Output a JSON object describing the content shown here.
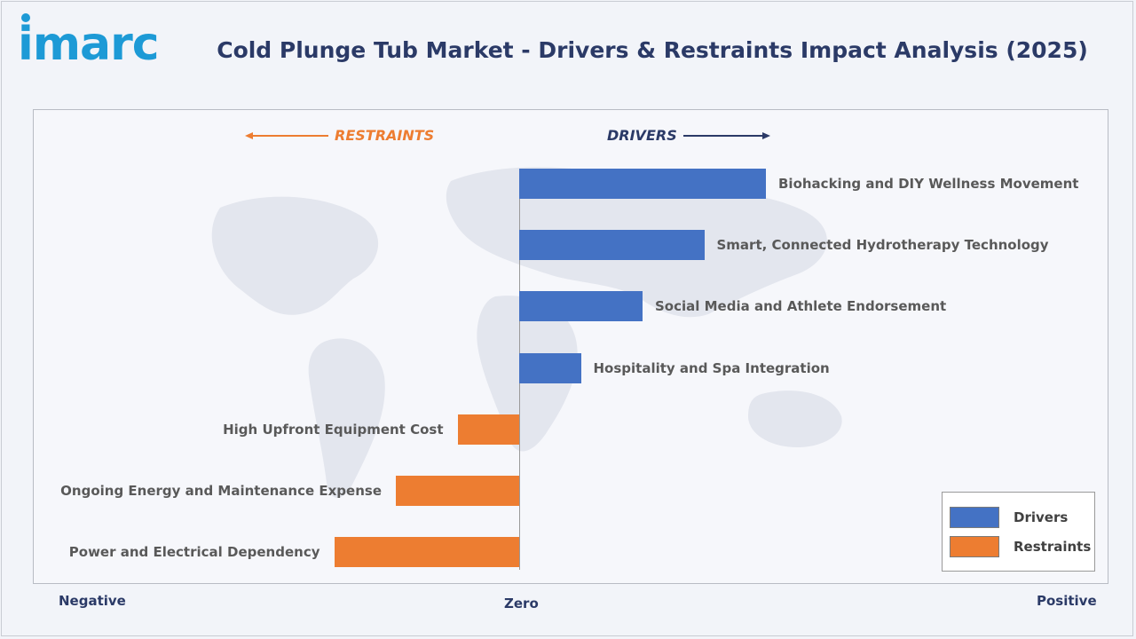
{
  "header": {
    "logo_text": "imarc",
    "title": "Cold Plunge Tub Market - Drivers & Restraints Impact Analysis (2025)"
  },
  "chart_data": {
    "type": "bar",
    "orientation": "horizontal",
    "categories": [
      "Biohacking and DIY Wellness Movement",
      "Smart, Connected Hydrotherapy Technology",
      "Social Media and Athlete Endorsement",
      "Hospitality and Spa Integration",
      "High Upfront Equipment Cost",
      "Ongoing Energy and Maintenance Expense",
      "Power and Electrical Dependency"
    ],
    "series": [
      {
        "name": "Drivers",
        "values": [
          4,
          3,
          2,
          1,
          null,
          null,
          null
        ]
      },
      {
        "name": "Restraints",
        "values": [
          null,
          null,
          null,
          null,
          -1,
          -2,
          -3
        ]
      }
    ],
    "colors": {
      "Drivers": "#4472c4",
      "Restraints": "#ed7d31",
      "drivers_heading": "#2b3a67",
      "restraints_heading": "#ed7d31"
    },
    "direction_labels": {
      "restraints": "RESTRAINTS",
      "drivers": "DRIVERS"
    },
    "axis_labels": {
      "negative": "Negative",
      "zero": "Zero",
      "positive": "Positive"
    },
    "legend": {
      "position": "bottom-right",
      "entries": [
        "Drivers",
        "Restraints"
      ]
    },
    "grid": false
  }
}
